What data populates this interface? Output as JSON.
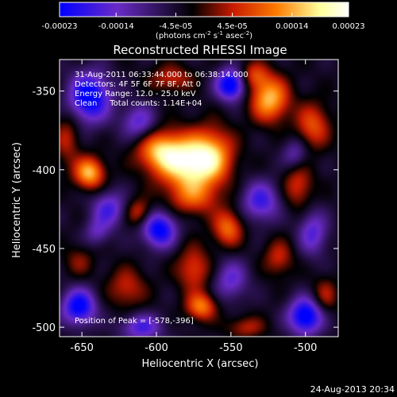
{
  "chart_data": {
    "type": "heatmap",
    "title": "Reconstructed RHESSI Image",
    "xlabel": "Heliocentric X (arcsec)",
    "ylabel": "Heliocentric Y (arcsec)",
    "xlim": [
      -665,
      -478
    ],
    "ylim": [
      -506,
      -330
    ],
    "x_ticks": [
      -650,
      -600,
      -550,
      -500
    ],
    "y_ticks": [
      -350,
      -400,
      -450,
      -500
    ],
    "x_tick_labels": [
      "-650",
      "-600",
      "-550",
      "-500"
    ],
    "y_tick_labels": [
      "-350",
      "-400",
      "-450",
      "-500"
    ],
    "colorbar": {
      "ticks": [
        -0.00023,
        -0.00014,
        -4.5e-05,
        4.5e-05,
        0.00014,
        0.00023
      ],
      "tick_labels": [
        "-0.00023",
        "-0.00014",
        "-4.5e-05",
        "4.5e-05",
        "0.00014",
        "0.00023"
      ],
      "units_prefix": "(photons cm",
      "units_sup1": "-2",
      "units_mid": " s",
      "units_sup2": "-1",
      "units_mid2": " asec",
      "units_sup3": "-2",
      "units_suffix": ")",
      "colors": [
        "#0000ff",
        "#6a2bc8",
        "#000000",
        "#c81a00",
        "#ff7a00",
        "#ffff9a",
        "#ffffff"
      ],
      "vmin": -0.00023,
      "vmax": 0.00023
    },
    "annotations": [
      "31-Aug-2011 06:33:44.000 to 06:38:14.000",
      "Detectors: 4F 5F 6F 7F 8F, Att 0",
      "Energy Range: 12.0 - 25.0 keV",
      "Clean     Total counts: 1.14E+04"
    ],
    "peak_label": "Position of Peak = [-578,-396]",
    "peak": {
      "x": -578,
      "y": -396,
      "value": 0.00023
    },
    "blobs": [
      {
        "x": -578,
        "y": -396,
        "value": 0.00023,
        "sx": 14,
        "sy": 12
      },
      {
        "x": -598,
        "y": -388,
        "value": 0.00016,
        "sx": 11,
        "sy": 9
      },
      {
        "x": -562,
        "y": -390,
        "value": 0.00013,
        "sx": 10,
        "sy": 12
      },
      {
        "x": -575,
        "y": -418,
        "value": 0.0001,
        "sx": 12,
        "sy": 8
      },
      {
        "x": -524,
        "y": -355,
        "value": 0.00019,
        "sx": 9,
        "sy": 10
      },
      {
        "x": -535,
        "y": -340,
        "value": 0.0001,
        "sx": 7,
        "sy": 6
      },
      {
        "x": -645,
        "y": -402,
        "value": 0.00019,
        "sx": 7,
        "sy": 7
      },
      {
        "x": -660,
        "y": -380,
        "value": 8e-05,
        "sx": 6,
        "sy": 12
      },
      {
        "x": -495,
        "y": -372,
        "value": 0.00012,
        "sx": 8,
        "sy": 10
      },
      {
        "x": -505,
        "y": -410,
        "value": 0.0001,
        "sx": 7,
        "sy": 10
      },
      {
        "x": -612,
        "y": -427,
        "value": 0.0001,
        "sx": 6,
        "sy": 6
      },
      {
        "x": -552,
        "y": -437,
        "value": 0.00014,
        "sx": 7,
        "sy": 8
      },
      {
        "x": -575,
        "y": -463,
        "value": 0.00011,
        "sx": 8,
        "sy": 10
      },
      {
        "x": -570,
        "y": -487,
        "value": 0.00015,
        "sx": 7,
        "sy": 6
      },
      {
        "x": -620,
        "y": -475,
        "value": 9e-05,
        "sx": 9,
        "sy": 9
      },
      {
        "x": -518,
        "y": -456,
        "value": 9e-05,
        "sx": 7,
        "sy": 8
      },
      {
        "x": -487,
        "y": -480,
        "value": 8e-05,
        "sx": 6,
        "sy": 8
      },
      {
        "x": -652,
        "y": -458,
        "value": 6e-05,
        "sx": 7,
        "sy": 7
      },
      {
        "x": -540,
        "y": -500,
        "value": 8e-05,
        "sx": 9,
        "sy": 5
      },
      {
        "x": -590,
        "y": -342,
        "value": 9e-05,
        "sx": 10,
        "sy": 6
      },
      {
        "x": -645,
        "y": -354,
        "value": -0.00021,
        "sx": 10,
        "sy": 11
      },
      {
        "x": -612,
        "y": -370,
        "value": -0.00012,
        "sx": 8,
        "sy": 8
      },
      {
        "x": -550,
        "y": -346,
        "value": -0.00022,
        "sx": 7,
        "sy": 7
      },
      {
        "x": -507,
        "y": -390,
        "value": -9e-05,
        "sx": 6,
        "sy": 7
      },
      {
        "x": -598,
        "y": -438,
        "value": -0.0002,
        "sx": 8,
        "sy": 8
      },
      {
        "x": -632,
        "y": -425,
        "value": -0.00013,
        "sx": 8,
        "sy": 8
      },
      {
        "x": -530,
        "y": -420,
        "value": -0.00014,
        "sx": 9,
        "sy": 9
      },
      {
        "x": -495,
        "y": -440,
        "value": -0.00012,
        "sx": 7,
        "sy": 10
      },
      {
        "x": -500,
        "y": -493,
        "value": -0.00022,
        "sx": 8,
        "sy": 8
      },
      {
        "x": -652,
        "y": -487,
        "value": -0.0002,
        "sx": 8,
        "sy": 8
      },
      {
        "x": -610,
        "y": -500,
        "value": -0.00013,
        "sx": 10,
        "sy": 6
      },
      {
        "x": -550,
        "y": -470,
        "value": -0.00011,
        "sx": 8,
        "sy": 9
      },
      {
        "x": -640,
        "y": -440,
        "value": -8e-05,
        "sx": 6,
        "sy": 6
      }
    ]
  },
  "timestamp": "24-Aug-2013 20:34"
}
